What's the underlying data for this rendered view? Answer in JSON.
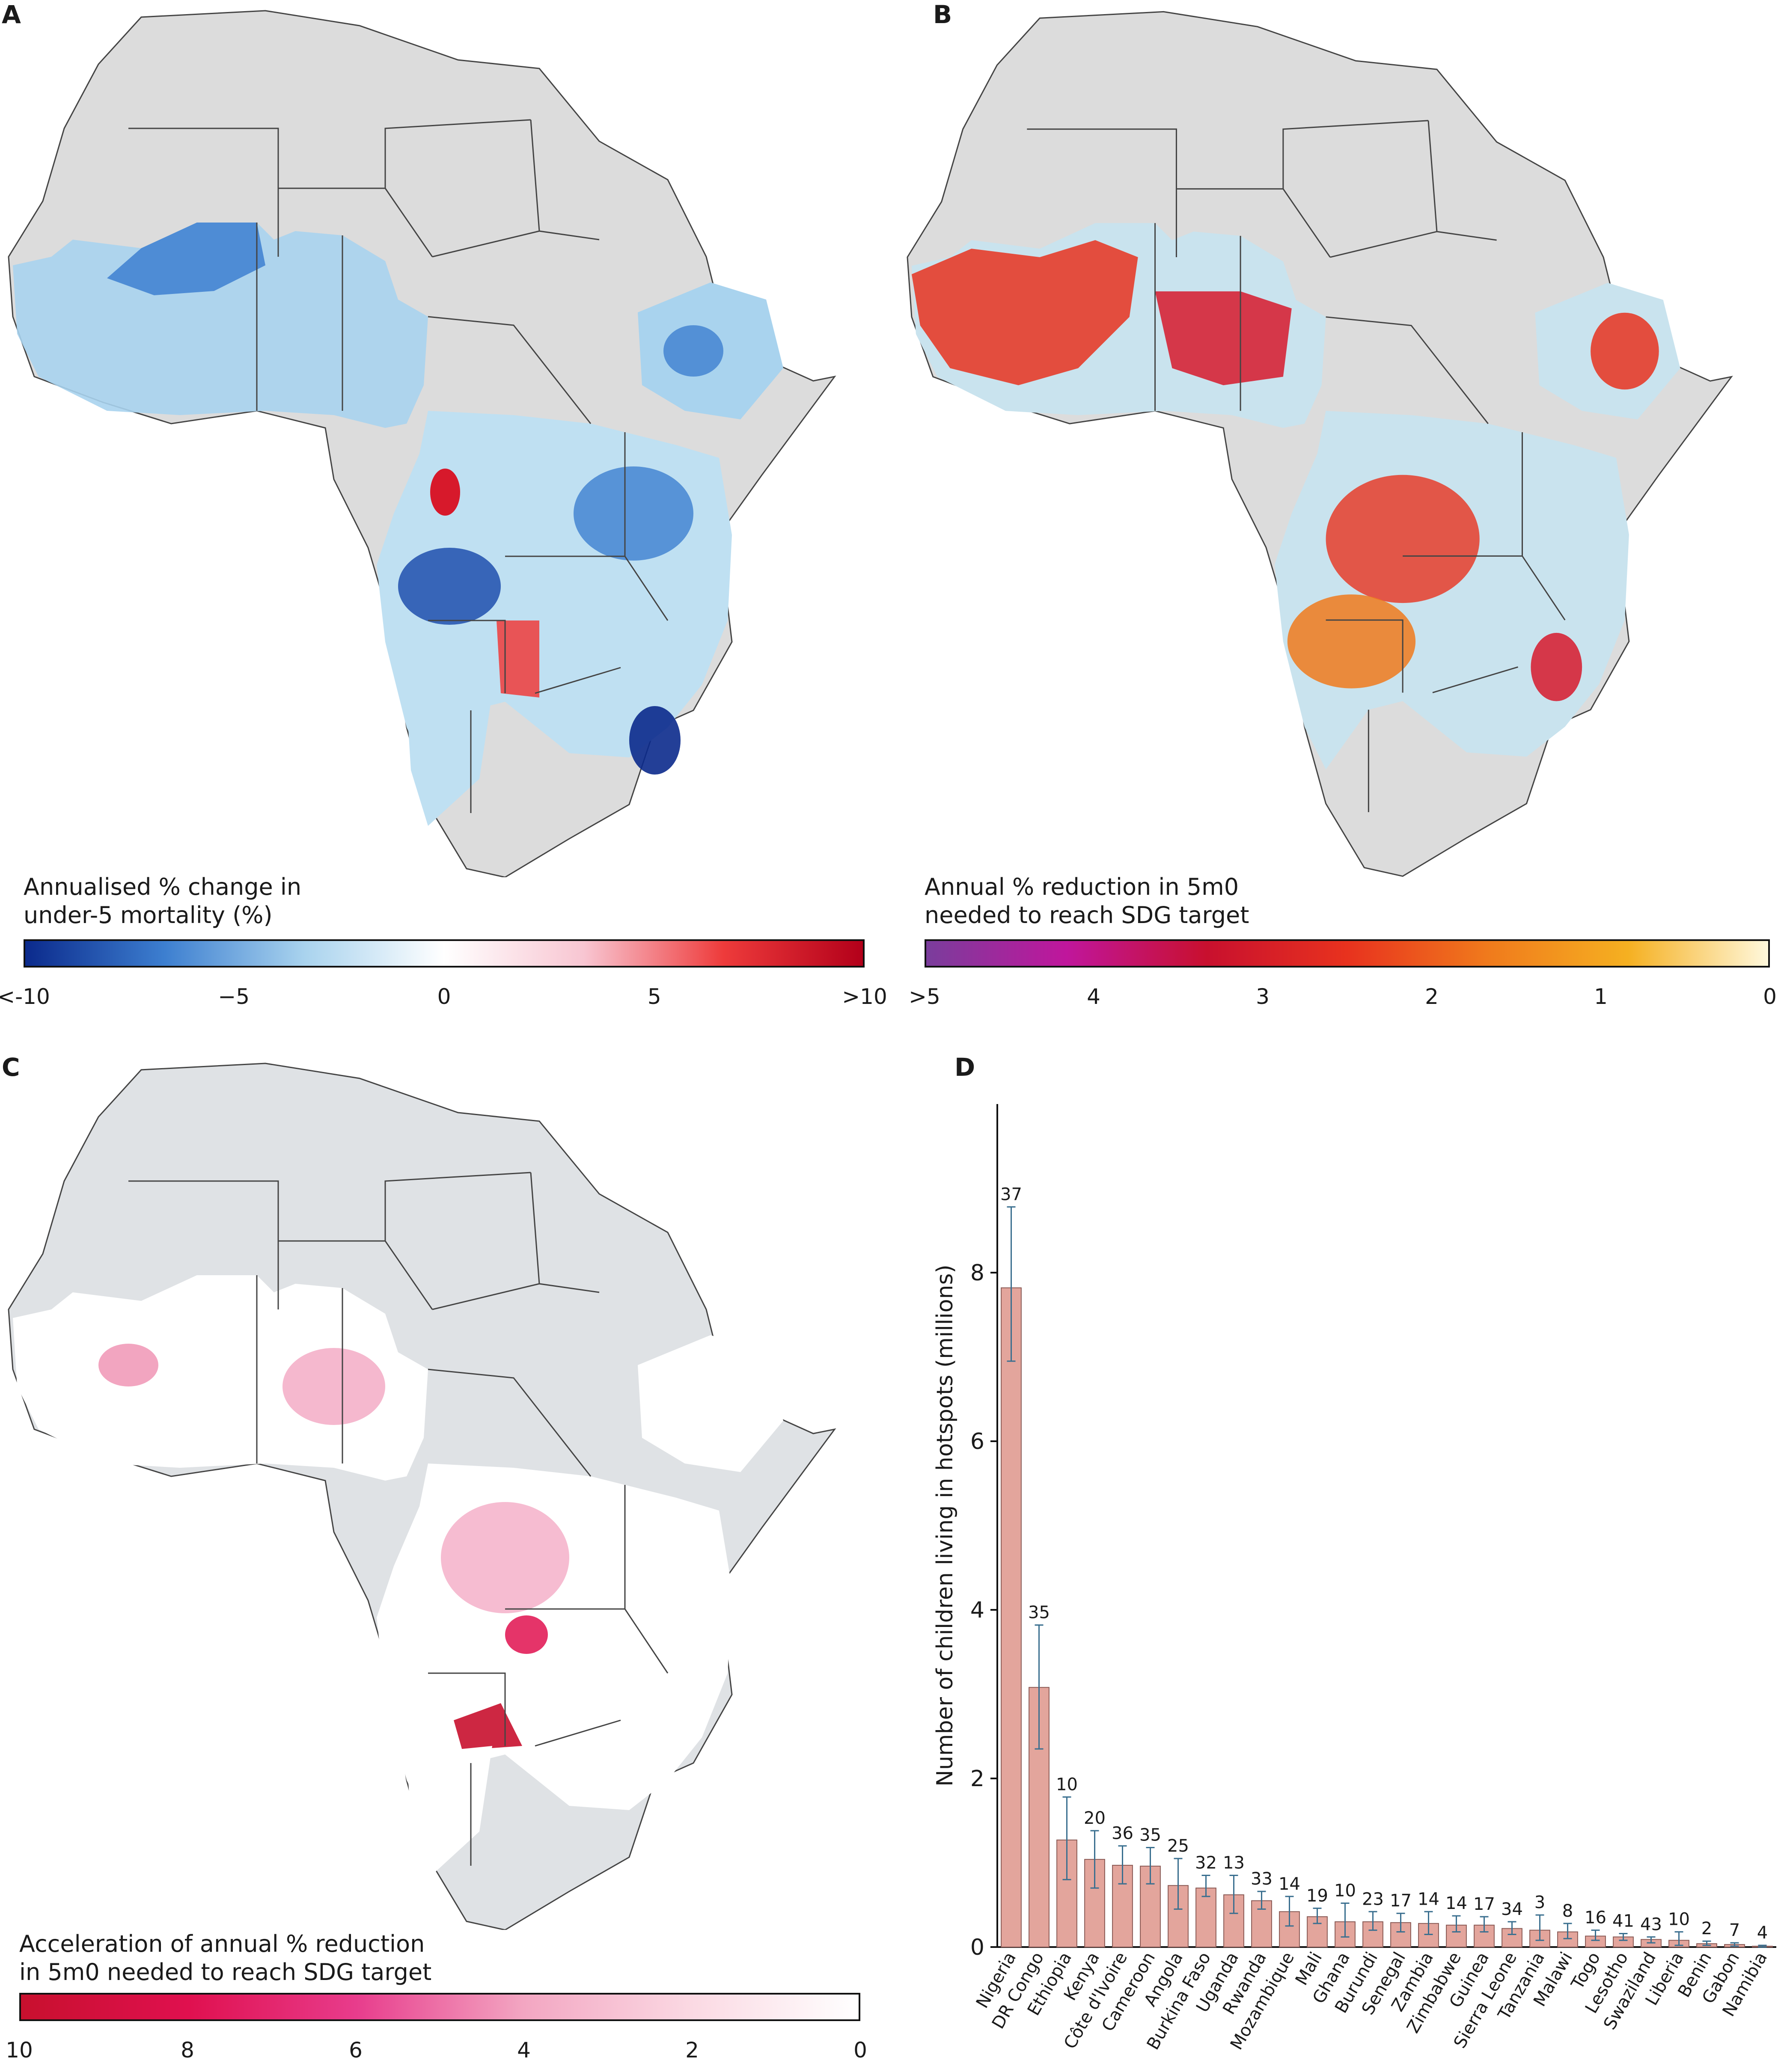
{
  "panels": {
    "a": {
      "letter": "A",
      "legend_title": "Annualised % change in\nunder-5 mortality (%)",
      "ticks": [
        "<-10",
        "−5",
        "0",
        "5",
        ">10"
      ],
      "gradient": [
        "#0b2a8c",
        "#3d7fd0",
        "#a9d3ee",
        "#ffffff",
        "#f8c6d2",
        "#ee3b3b",
        "#b3001a"
      ]
    },
    "b": {
      "letter": "B",
      "legend_title": "Annual % reduction in 5m0\nneeded to reach SDG target",
      "ticks": [
        ">5",
        "4",
        "3",
        "2",
        "1",
        "0"
      ],
      "gradient": [
        "#7a3d9c",
        "#c0169c",
        "#c8102e",
        "#e8321e",
        "#f07a1c",
        "#f5b021",
        "#fff8dc"
      ]
    },
    "c": {
      "letter": "C",
      "legend_title": "Acceleration of annual % reduction\nin 5m0 needed to reach SDG target",
      "ticks": [
        "10",
        "8",
        "6",
        "4",
        "2",
        "0"
      ],
      "gradient": [
        "#c8102e",
        "#e0104f",
        "#e83c8c",
        "#f3a6c2",
        "#fbd9e3",
        "#ffffff"
      ]
    },
    "d": {
      "letter": "D"
    }
  },
  "map_colors": {
    "land_grey": "#dcdcdc",
    "border": "#444444",
    "blue_dark": "#1e4fae",
    "blue_light": "#bfe0f2",
    "red": "#d7192b",
    "orange": "#f08a1c",
    "pink": "#ef8fb0",
    "light_blue_fill": "#c9e3ee"
  },
  "chart_data": {
    "type": "bar",
    "ylabel": "Number of children living in hotspots (millions)",
    "ylim": [
      0,
      10
    ],
    "yticks": [
      0,
      2,
      4,
      6,
      8
    ],
    "bar_color": "#e3a59c",
    "categories": [
      "Nigeria",
      "DR Congo",
      "Ethiopia",
      "Kenya",
      "Côte d'Ivoire",
      "Cameroon",
      "Angola",
      "Burkina Faso",
      "Uganda",
      "Rwanda",
      "Mozambique",
      "Mali",
      "Ghana",
      "Burundi",
      "Senegal",
      "Zambia",
      "Zimbabwe",
      "Guinea",
      "Sierra Leone",
      "Tanzania",
      "Malawi",
      "Togo",
      "Lesotho",
      "Swaziland",
      "Liberia",
      "Benin",
      "Gabon",
      "Namibia"
    ],
    "values": [
      7.82,
      3.08,
      1.27,
      1.04,
      0.97,
      0.96,
      0.73,
      0.7,
      0.62,
      0.55,
      0.42,
      0.36,
      0.3,
      0.3,
      0.29,
      0.28,
      0.26,
      0.26,
      0.22,
      0.2,
      0.18,
      0.13,
      0.12,
      0.09,
      0.08,
      0.04,
      0.03,
      0.01
    ],
    "err_low": [
      6.95,
      2.35,
      0.8,
      0.7,
      0.75,
      0.75,
      0.45,
      0.6,
      0.4,
      0.45,
      0.25,
      0.28,
      0.12,
      0.2,
      0.18,
      0.15,
      0.18,
      0.18,
      0.15,
      0.08,
      0.1,
      0.08,
      0.08,
      0.05,
      0.02,
      0.02,
      0.01,
      0.0
    ],
    "err_high": [
      8.78,
      3.82,
      1.78,
      1.38,
      1.2,
      1.18,
      1.05,
      0.85,
      0.85,
      0.66,
      0.6,
      0.46,
      0.52,
      0.42,
      0.4,
      0.42,
      0.37,
      0.36,
      0.3,
      0.38,
      0.28,
      0.2,
      0.16,
      0.12,
      0.18,
      0.07,
      0.05,
      0.02
    ],
    "bar_labels": [
      "37",
      "35",
      "10",
      "20",
      "36",
      "35",
      "25",
      "32",
      "13",
      "33",
      "14",
      "19",
      "10",
      "23",
      "17",
      "14",
      "14",
      "17",
      "34",
      "3",
      "8",
      "16",
      "41",
      "43",
      "10",
      "2",
      "7",
      "4"
    ]
  }
}
